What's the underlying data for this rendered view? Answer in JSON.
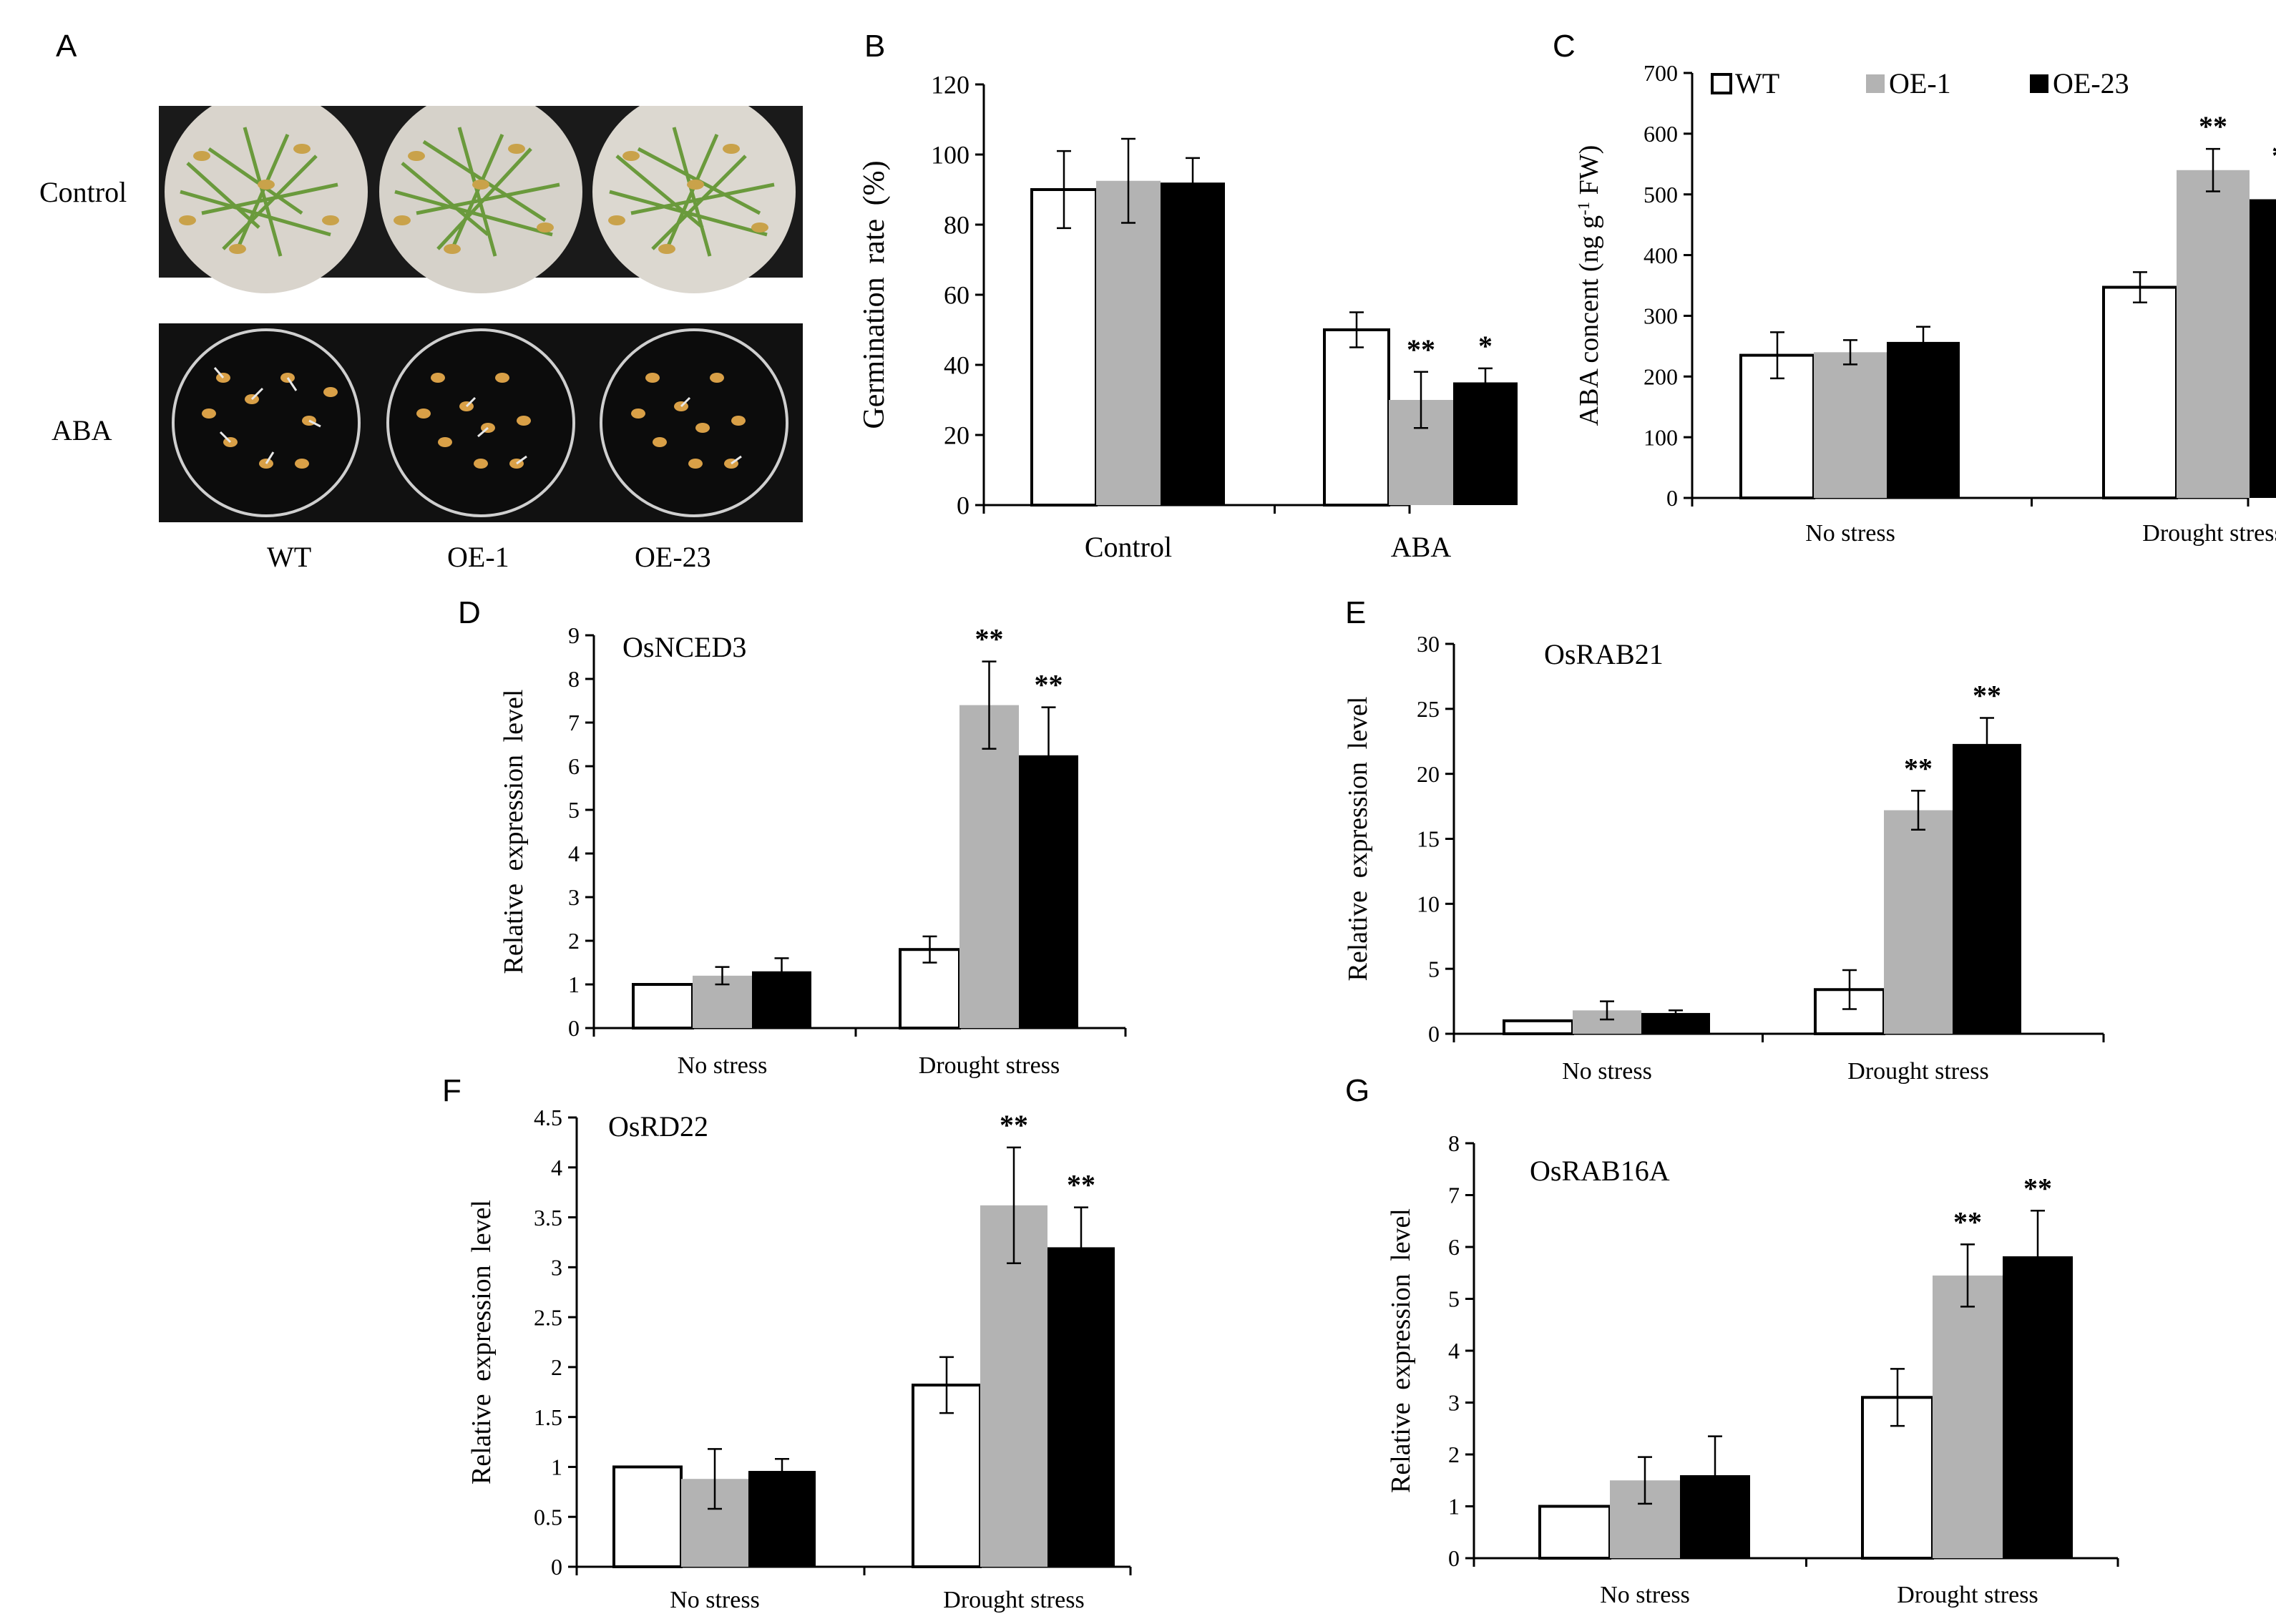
{
  "panel_letters": [
    "A",
    "B",
    "C",
    "D",
    "E",
    "F",
    "G"
  ],
  "photo_panel": {
    "row_labels": [
      "Control",
      "ABA"
    ],
    "column_labels": [
      "WT",
      "OE-1",
      "OE-23"
    ]
  },
  "legend": {
    "entries": [
      {
        "name": "WT",
        "color": "#ffffff"
      },
      {
        "name": "OE-1",
        "color": "#b3b3b3"
      },
      {
        "name": "OE-23",
        "color": "#000000"
      }
    ]
  },
  "chart_data": [
    {
      "id": "B",
      "type": "bar",
      "title": "",
      "ylabel": "Germination rate (%)",
      "ylim": [
        0,
        120
      ],
      "yticks": [
        0,
        20,
        40,
        60,
        80,
        100,
        120
      ],
      "categories": [
        "Control",
        "ABA"
      ],
      "series": [
        {
          "name": "WT",
          "values": [
            90,
            50
          ],
          "errors": [
            11,
            5
          ],
          "stars": [
            "",
            ""
          ]
        },
        {
          "name": "OE-1",
          "values": [
            92.5,
            30
          ],
          "errors": [
            12,
            8
          ],
          "stars": [
            "",
            "**"
          ]
        },
        {
          "name": "OE-23",
          "values": [
            92,
            35
          ],
          "errors": [
            7,
            4
          ],
          "stars": [
            "",
            "*"
          ]
        }
      ]
    },
    {
      "id": "C",
      "type": "bar",
      "title": "",
      "ylabel": "ABA concent (ng g-1 FW)",
      "ylim": [
        0,
        700
      ],
      "yticks": [
        0,
        100,
        200,
        300,
        400,
        500,
        600,
        700
      ],
      "categories": [
        "No stress",
        "Drought stress"
      ],
      "legend": "top",
      "series": [
        {
          "name": "WT",
          "values": [
            235,
            347
          ],
          "errors": [
            38,
            25
          ],
          "stars": [
            "",
            ""
          ]
        },
        {
          "name": "OE-1",
          "values": [
            240,
            540
          ],
          "errors": [
            20,
            35
          ],
          "stars": [
            "",
            "**"
          ]
        },
        {
          "name": "OE-23",
          "values": [
            257,
            492
          ],
          "errors": [
            25,
            35
          ],
          "stars": [
            "",
            "**"
          ]
        }
      ]
    },
    {
      "id": "D",
      "type": "bar",
      "title": "OsNCED3",
      "ylabel": "Relative expression level",
      "ylim": [
        0,
        9
      ],
      "yticks": [
        0,
        1,
        2,
        3,
        4,
        5,
        6,
        7,
        8,
        9
      ],
      "categories": [
        "No stress",
        "Drought stress"
      ],
      "series": [
        {
          "name": "WT",
          "values": [
            1,
            1.8
          ],
          "errors": [
            0,
            0.3
          ],
          "stars": [
            "",
            ""
          ]
        },
        {
          "name": "OE-1",
          "values": [
            1.2,
            7.4
          ],
          "errors": [
            0.2,
            1.0
          ],
          "stars": [
            "",
            "**"
          ]
        },
        {
          "name": "OE-23",
          "values": [
            1.3,
            6.25
          ],
          "errors": [
            0.3,
            1.1
          ],
          "stars": [
            "",
            "**"
          ]
        }
      ]
    },
    {
      "id": "E",
      "type": "bar",
      "title": "OsRAB21",
      "ylabel": "Relative expression level",
      "ylim": [
        0,
        30
      ],
      "yticks": [
        0,
        5,
        10,
        15,
        20,
        25,
        30
      ],
      "categories": [
        "No stress",
        "Drought stress"
      ],
      "series": [
        {
          "name": "WT",
          "values": [
            1,
            3.4
          ],
          "errors": [
            0,
            1.5
          ],
          "stars": [
            "",
            ""
          ]
        },
        {
          "name": "OE-1",
          "values": [
            1.8,
            17.2
          ],
          "errors": [
            0.7,
            1.5
          ],
          "stars": [
            "",
            "**"
          ]
        },
        {
          "name": "OE-23",
          "values": [
            1.6,
            22.3
          ],
          "errors": [
            0.2,
            2.0
          ],
          "stars": [
            "",
            "**"
          ]
        }
      ]
    },
    {
      "id": "F",
      "type": "bar",
      "title": "OsRD22",
      "ylabel": "Relative expression level",
      "ylim": [
        0,
        4.5
      ],
      "yticks": [
        "0",
        "0.5",
        "1",
        "1.5",
        "2",
        "2.5",
        "3",
        "3.5",
        "4",
        "4.5"
      ],
      "categories": [
        "No stress",
        "Drought stress"
      ],
      "series": [
        {
          "name": "WT",
          "values": [
            1,
            1.82
          ],
          "errors": [
            0,
            0.28
          ],
          "stars": [
            "",
            ""
          ]
        },
        {
          "name": "OE-1",
          "values": [
            0.88,
            3.62
          ],
          "errors": [
            0.3,
            0.58
          ],
          "stars": [
            "",
            "**"
          ]
        },
        {
          "name": "OE-23",
          "values": [
            0.96,
            3.2
          ],
          "errors": [
            0.12,
            0.4
          ],
          "stars": [
            "",
            "**"
          ]
        }
      ]
    },
    {
      "id": "G",
      "type": "bar",
      "title": "OsRAB16A",
      "ylabel": "Relative expression level",
      "ylim": [
        0,
        8
      ],
      "yticks": [
        0,
        1,
        2,
        3,
        4,
        5,
        6,
        7,
        8
      ],
      "categories": [
        "No stress",
        "Drought stress"
      ],
      "series": [
        {
          "name": "WT",
          "values": [
            1,
            3.1
          ],
          "errors": [
            0,
            0.55
          ],
          "stars": [
            "",
            ""
          ]
        },
        {
          "name": "OE-1",
          "values": [
            1.5,
            5.45
          ],
          "errors": [
            0.45,
            0.6
          ],
          "stars": [
            "",
            "**"
          ]
        },
        {
          "name": "OE-23",
          "values": [
            1.6,
            5.82
          ],
          "errors": [
            0.75,
            0.88
          ],
          "stars": [
            "",
            "**"
          ]
        }
      ]
    }
  ]
}
